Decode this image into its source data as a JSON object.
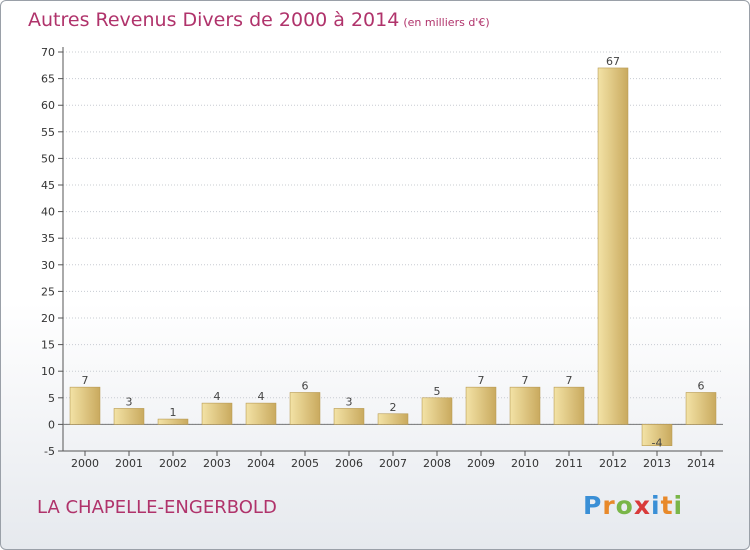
{
  "title": "Autres Revenus Divers de 2000 à 2014",
  "subtitle": "(en milliers d'€)",
  "commune": "LA CHAPELLE-ENGERBOLD",
  "logo": {
    "letters": [
      "P",
      "r",
      "o",
      "x",
      "i",
      "t",
      "i"
    ],
    "colors": [
      "#3a8fd6",
      "#e8892a",
      "#7ab648",
      "#d93a3a",
      "#3a8fd6",
      "#e8892a",
      "#7ab648"
    ]
  },
  "colors": {
    "title": "#b0336b",
    "bar": "#d9c07a",
    "bar_highlight": "#f3e3a6",
    "grid": "#c8ccd2"
  },
  "chart_data": {
    "type": "bar",
    "categories": [
      "2000",
      "2001",
      "2002",
      "2003",
      "2004",
      "2005",
      "2006",
      "2007",
      "2008",
      "2009",
      "2010",
      "2011",
      "2012",
      "2013",
      "2014"
    ],
    "values": [
      7,
      3,
      1,
      4,
      4,
      6,
      3,
      2,
      5,
      7,
      7,
      7,
      67,
      -4,
      6
    ],
    "data_labels": [
      "7",
      "3",
      "1",
      "4",
      "4",
      "6",
      "3",
      "2",
      "5",
      "7",
      "7",
      "7",
      "67",
      "-4",
      "6"
    ],
    "ylim": [
      -5,
      70
    ],
    "yticks": [
      -5,
      0,
      5,
      10,
      15,
      20,
      25,
      30,
      35,
      40,
      45,
      50,
      55,
      60,
      65,
      70
    ],
    "grid": true
  }
}
